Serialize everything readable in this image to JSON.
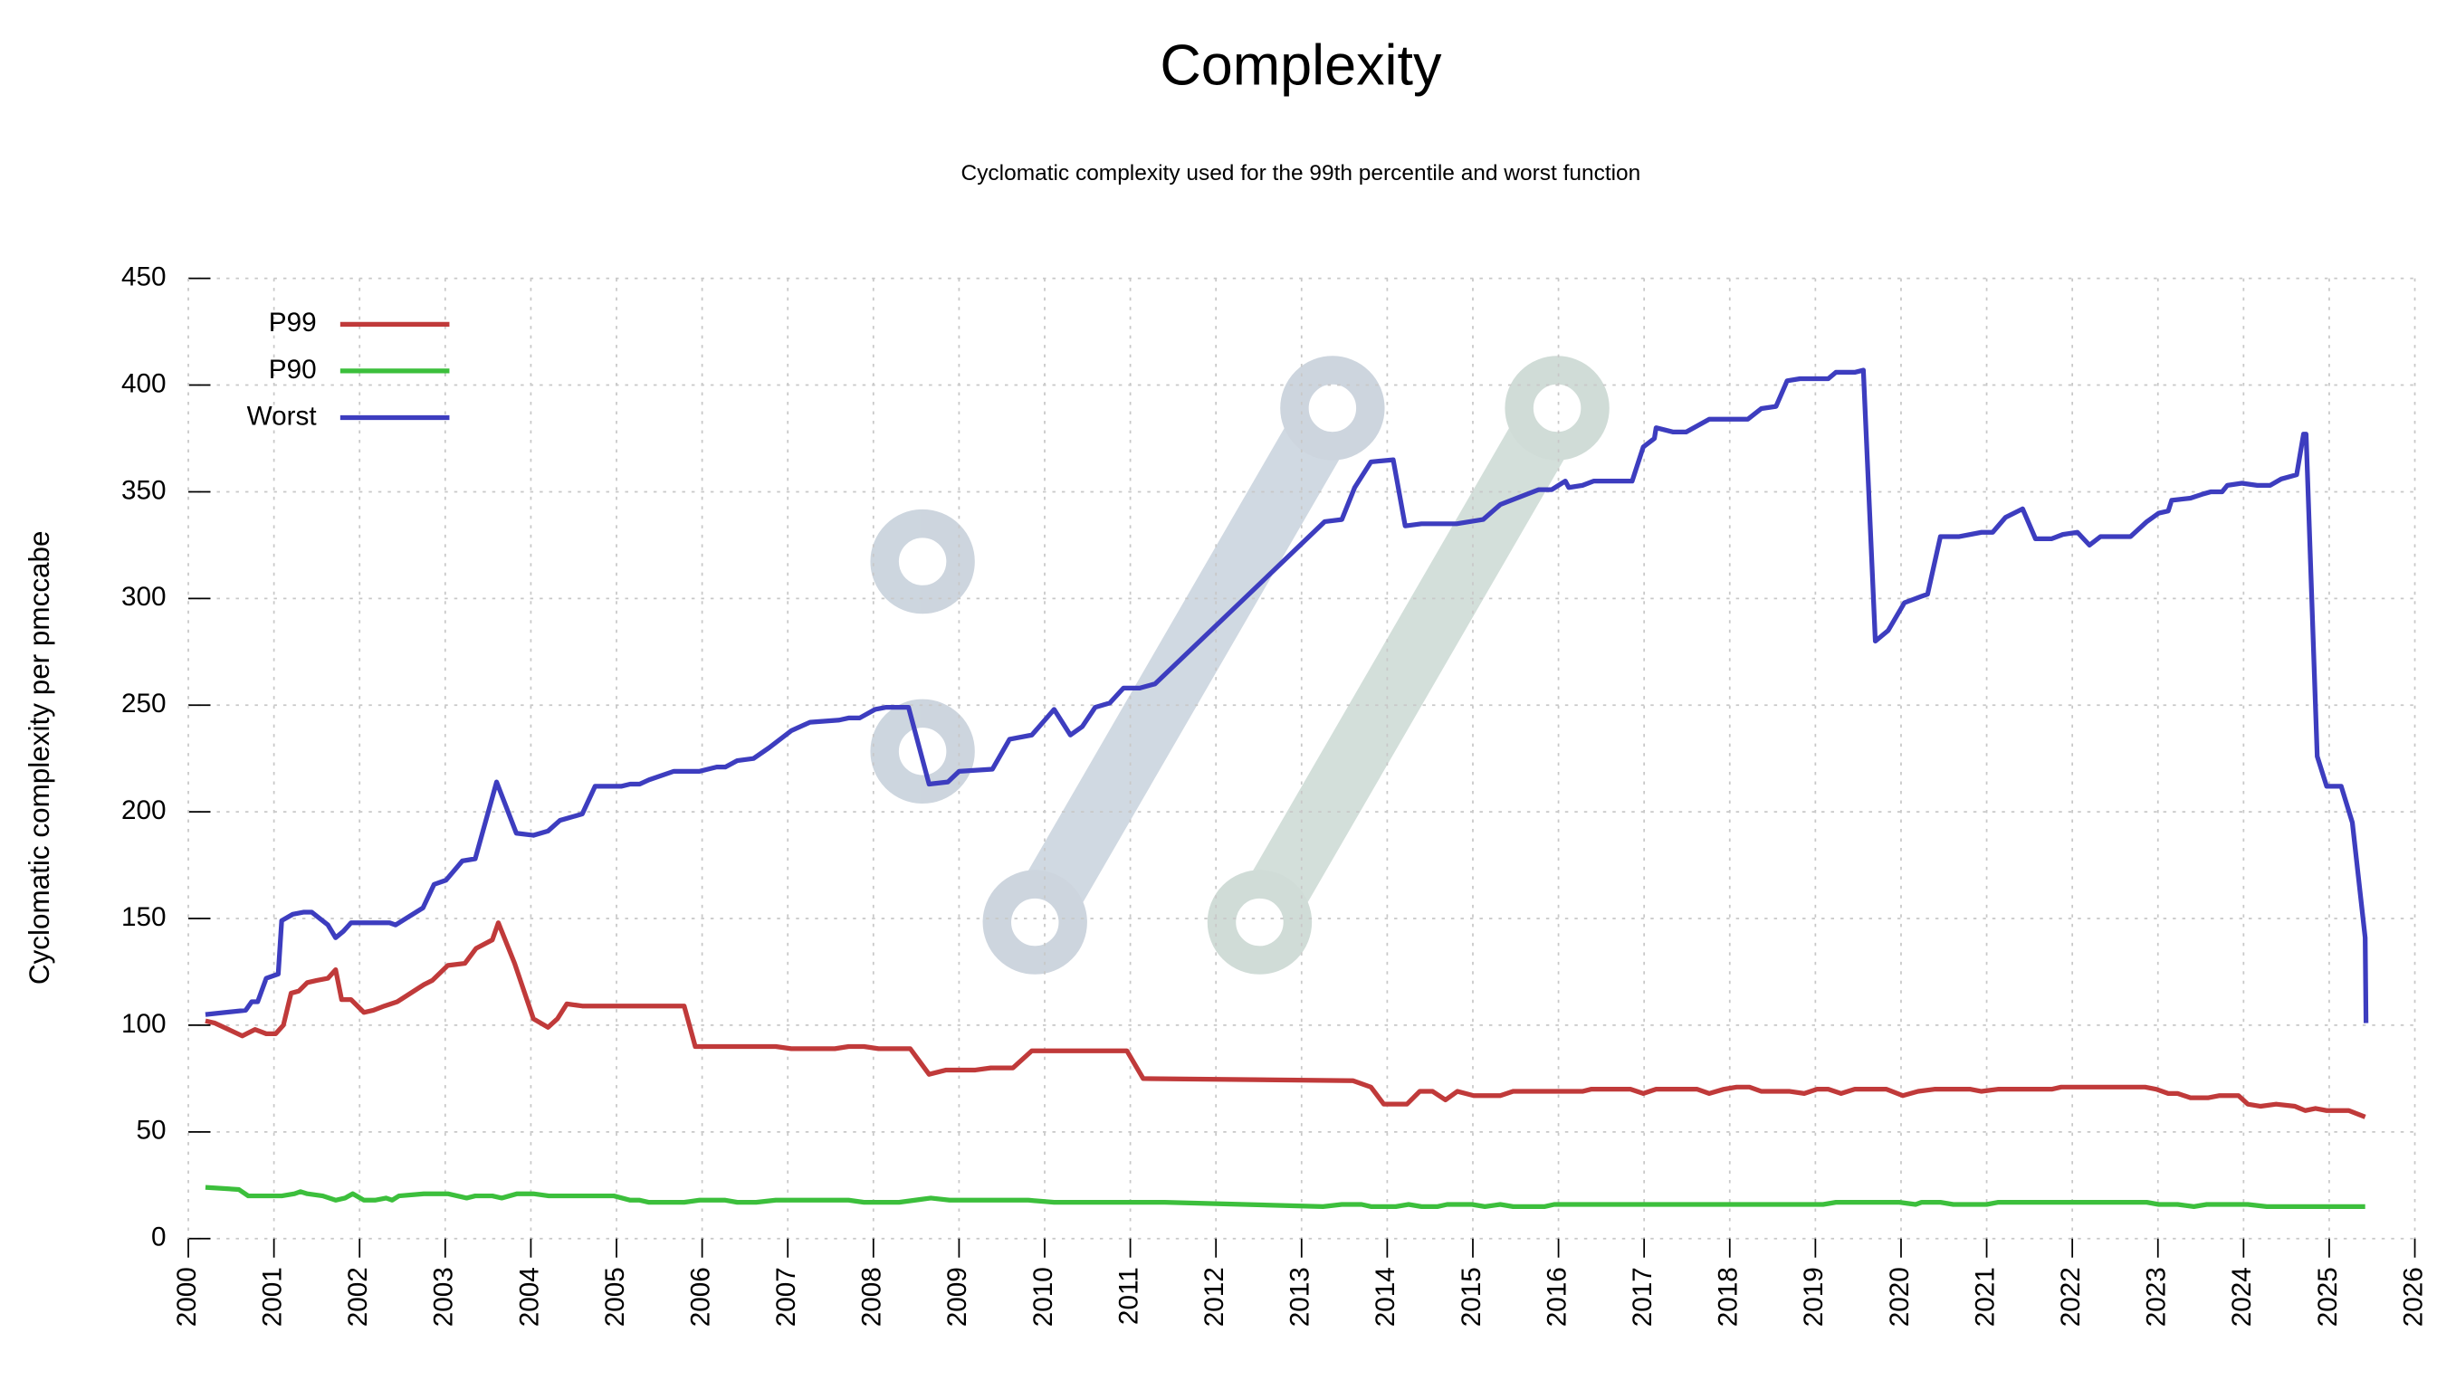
{
  "chart_data": {
    "type": "line",
    "title": "Complexity",
    "subtitle": "Cyclomatic complexity used for the 99th percentile and worst function",
    "y_label": "Cyclomatic complexity per pmccabe",
    "xlim": [
      2000,
      2026
    ],
    "xticks": [
      2000,
      2001,
      2002,
      2003,
      2004,
      2005,
      2006,
      2007,
      2008,
      2009,
      2010,
      2011,
      2012,
      2013,
      2014,
      2015,
      2016,
      2017,
      2018,
      2019,
      2020,
      2021,
      2022,
      2023,
      2024,
      2025,
      2026
    ],
    "ylim": [
      0,
      450
    ],
    "yticks": [
      0,
      50,
      100,
      150,
      200,
      250,
      300,
      350,
      400,
      450
    ],
    "grid": true,
    "legend": "upper left",
    "series": [
      {
        "name": "P99",
        "color": "#c03a3a",
        "x": [
          2000.2,
          2000.31,
          2000.63,
          2000.78,
          2000.91,
          2001.02,
          2001.11,
          2001.2,
          2001.29,
          2001.39,
          2001.5,
          2001.63,
          2001.72,
          2001.79,
          2001.9,
          2002.05,
          2002.16,
          2002.29,
          2002.44,
          2002.75,
          2002.85,
          2003.03,
          2003.23,
          2003.36,
          2003.55,
          2003.62,
          2003.81,
          2004.03,
          2004.2,
          2004.31,
          2004.42,
          2004.6,
          2005.79,
          2005.92,
          2006.86,
          2007.04,
          2007.55,
          2007.71,
          2007.89,
          2008.06,
          2008.43,
          2008.65,
          2008.85,
          2009.19,
          2009.37,
          2009.63,
          2009.85,
          2010.96,
          2011.15,
          2013.6,
          2013.81,
          2013.96,
          2014.23,
          2014.38,
          2014.53,
          2014.68,
          2014.82,
          2015.01,
          2015.32,
          2015.47,
          2016.28,
          2016.38,
          2016.84,
          2016.99,
          2017.14,
          2017.62,
          2017.76,
          2017.93,
          2018.08,
          2018.23,
          2018.37,
          2018.7,
          2018.87,
          2019.02,
          2019.15,
          2019.3,
          2019.46,
          2019.83,
          2020.02,
          2020.2,
          2020.39,
          2020.81,
          2020.94,
          2021.13,
          2021.76,
          2021.87,
          2022.85,
          2022.98,
          2023.12,
          2023.23,
          2023.38,
          2023.59,
          2023.72,
          2023.94,
          2024.05,
          2024.2,
          2024.38,
          2024.6,
          2024.72,
          2024.84,
          2024.97,
          2025.23,
          2025.42
        ],
        "values": [
          102,
          101,
          95,
          98,
          96,
          96,
          100,
          115,
          116,
          120,
          121,
          122,
          126,
          112,
          112,
          106,
          107,
          109,
          111,
          119,
          121,
          128,
          129,
          136,
          140,
          148,
          129,
          103,
          99,
          103,
          110,
          109,
          109,
          90,
          90,
          89,
          89,
          90,
          90,
          89,
          89,
          77,
          79,
          79,
          80,
          80,
          88,
          88,
          75,
          74,
          71,
          63,
          63,
          69,
          69,
          65,
          69,
          67,
          67,
          69,
          69,
          70,
          70,
          68,
          70,
          70,
          68,
          70,
          71,
          71,
          69,
          69,
          68,
          70,
          70,
          68,
          70,
          70,
          67,
          69,
          70,
          70,
          69,
          70,
          70,
          71,
          71,
          70,
          68,
          68,
          66,
          66,
          67,
          67,
          63,
          62,
          63,
          62,
          60,
          61,
          60,
          60,
          57
        ]
      },
      {
        "name": "P90",
        "color": "#3cbf3c",
        "x": [
          2000.2,
          2000.59,
          2000.7,
          2001.09,
          2001.24,
          2001.31,
          2001.39,
          2001.57,
          2001.72,
          2001.83,
          2001.92,
          2002.05,
          2002.18,
          2002.31,
          2002.38,
          2002.46,
          2002.75,
          2003.03,
          2003.25,
          2003.35,
          2003.55,
          2003.66,
          2003.84,
          2004.03,
          2004.21,
          2004.97,
          2005.16,
          2005.27,
          2005.38,
          2005.79,
          2005.97,
          2006.27,
          2006.41,
          2006.63,
          2006.86,
          2007.71,
          2007.89,
          2008.3,
          2008.67,
          2008.89,
          2009.81,
          2010.11,
          2011.4,
          2013.25,
          2013.47,
          2013.7,
          2013.81,
          2014.1,
          2014.25,
          2014.4,
          2014.59,
          2014.7,
          2014.99,
          2015.14,
          2015.32,
          2015.47,
          2015.84,
          2015.95,
          2019.09,
          2019.24,
          2019.98,
          2020.17,
          2020.24,
          2020.46,
          2020.61,
          2021.0,
          2021.13,
          2022.87,
          2023.01,
          2023.23,
          2023.42,
          2023.57,
          2024.05,
          2024.27,
          2025.42
        ],
        "values": [
          24,
          23,
          20,
          20,
          21,
          22,
          21,
          20,
          18,
          19,
          21,
          18,
          18,
          19,
          18,
          20,
          21,
          21,
          19,
          20,
          20,
          19,
          21,
          21,
          20,
          20,
          18,
          18,
          17,
          17,
          18,
          18,
          17,
          17,
          18,
          18,
          17,
          17,
          19,
          18,
          18,
          17,
          17,
          15,
          16,
          16,
          15,
          15,
          16,
          15,
          15,
          16,
          16,
          15,
          16,
          15,
          15,
          16,
          16,
          17,
          17,
          16,
          17,
          17,
          16,
          16,
          17,
          17,
          16,
          16,
          15,
          16,
          16,
          15,
          15
        ]
      },
      {
        "name": "Worst",
        "color": "#3d3dbf",
        "x": [
          2000.2,
          2000.67,
          2000.74,
          2000.81,
          2000.91,
          2001.05,
          2001.09,
          2001.22,
          2001.35,
          2001.44,
          2001.63,
          2001.72,
          2001.81,
          2001.9,
          2002.35,
          2002.42,
          2002.74,
          2002.87,
          2003.01,
          2003.2,
          2003.35,
          2003.6,
          2003.83,
          2004.03,
          2004.2,
          2004.34,
          2004.6,
          2004.75,
          2005.06,
          2005.16,
          2005.27,
          2005.38,
          2005.67,
          2005.97,
          2006.17,
          2006.27,
          2006.41,
          2006.6,
          2006.78,
          2007.04,
          2007.26,
          2007.6,
          2007.71,
          2007.84,
          2008.02,
          2008.15,
          2008.41,
          2008.65,
          2008.87,
          2009.0,
          2009.39,
          2009.59,
          2009.85,
          2010.11,
          2010.3,
          2010.44,
          2010.59,
          2010.76,
          2010.92,
          2011.11,
          2011.29,
          2013.27,
          2013.47,
          2013.62,
          2013.81,
          2014.07,
          2014.21,
          2014.4,
          2014.81,
          2015.12,
          2015.32,
          2015.51,
          2015.77,
          2015.92,
          2016.08,
          2016.12,
          2016.28,
          2016.41,
          2016.86,
          2016.99,
          2017.12,
          2017.14,
          2017.34,
          2017.49,
          2017.76,
          2018.21,
          2018.37,
          2018.54,
          2018.67,
          2018.82,
          2019.15,
          2019.24,
          2019.46,
          2019.56,
          2019.7,
          2019.85,
          2020.04,
          2020.24,
          2020.31,
          2020.46,
          2020.68,
          2020.94,
          2021.07,
          2021.22,
          2021.42,
          2021.57,
          2021.76,
          2021.89,
          2022.06,
          2022.2,
          2022.33,
          2022.68,
          2022.87,
          2023.01,
          2023.12,
          2023.16,
          2023.38,
          2023.53,
          2023.62,
          2023.75,
          2023.81,
          2023.98,
          2024.16,
          2024.31,
          2024.44,
          2024.62,
          2024.7,
          2024.73,
          2024.86,
          2024.97,
          2025.14,
          2025.27,
          2025.42,
          2025.43
        ],
        "values": [
          105,
          107,
          111,
          111,
          122,
          124,
          149,
          152,
          153,
          153,
          147,
          141,
          144,
          148,
          148,
          147,
          155,
          166,
          168,
          177,
          178,
          214,
          190,
          189,
          191,
          196,
          199,
          212,
          212,
          213,
          213,
          215,
          219,
          219,
          221,
          221,
          224,
          225,
          230,
          238,
          242,
          243,
          244,
          244,
          248,
          249,
          249,
          213,
          214,
          219,
          220,
          234,
          236,
          248,
          236,
          240,
          249,
          251,
          258,
          258,
          260,
          336,
          337,
          352,
          364,
          365,
          334,
          335,
          335,
          337,
          344,
          347,
          351,
          351,
          355,
          352,
          353,
          355,
          355,
          371,
          375,
          380,
          378,
          378,
          384,
          384,
          389,
          390,
          402,
          403,
          403,
          406,
          406,
          407,
          280,
          285,
          298,
          301,
          302,
          329,
          329,
          331,
          331,
          338,
          342,
          328,
          328,
          330,
          331,
          325,
          329,
          329,
          336,
          340,
          341,
          346,
          347,
          349,
          350,
          350,
          353,
          354,
          353,
          353,
          356,
          358,
          377,
          377,
          226,
          212,
          212,
          195,
          141,
          101
        ]
      }
    ]
  }
}
